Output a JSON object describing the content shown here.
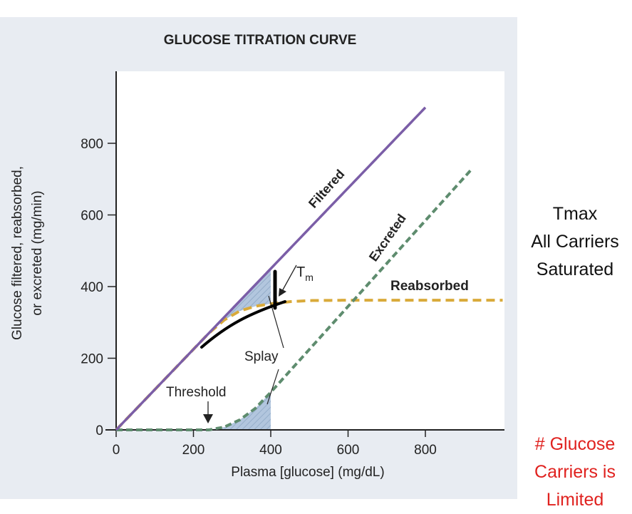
{
  "chart_data": {
    "type": "line",
    "title": "GLUCOSE TITRATION CURVE",
    "xlabel": "Plasma [glucose] (mg/dL)",
    "ylabel_lines": [
      "Glucose filtered, reabsorbed,",
      "or excreted (mg/min)"
    ],
    "xlim": [
      0,
      1000
    ],
    "ylim": [
      0,
      1000
    ],
    "xticks": [
      0,
      200,
      400,
      600,
      800
    ],
    "yticks": [
      0,
      200,
      400,
      600,
      800
    ],
    "series": [
      {
        "name": "Filtered",
        "style": "solid",
        "color": "#7b5ea7",
        "x": [
          0,
          800
        ],
        "y": [
          0,
          900
        ]
      },
      {
        "name": "Excreted",
        "style": "dashed",
        "color": "#5e8c6e",
        "x": [
          0,
          240,
          280,
          320,
          360,
          400,
          920
        ],
        "y": [
          0,
          0,
          8,
          28,
          60,
          105,
          728
        ]
      },
      {
        "name": "Reabsorbed",
        "style": "dashed",
        "color": "#d9aa3a",
        "x": [
          0,
          240,
          280,
          320,
          360,
          400,
          450,
          500,
          600,
          1000
        ],
        "y": [
          0,
          270,
          307,
          332,
          345,
          352,
          358,
          361,
          362,
          362
        ]
      }
    ],
    "annotations": {
      "tm": "T",
      "tm_sub": "m",
      "splay": "Splay",
      "threshold": "Threshold"
    }
  },
  "side_notes": {
    "tmax": [
      "Tmax",
      "All Carriers",
      "Saturated"
    ],
    "limited": [
      "# Glucose",
      "Carriers is",
      "Limited"
    ]
  },
  "colors": {
    "panel": "#e8ecf2",
    "hatch": "#9fb8d4",
    "red_note": "#e0221f"
  }
}
